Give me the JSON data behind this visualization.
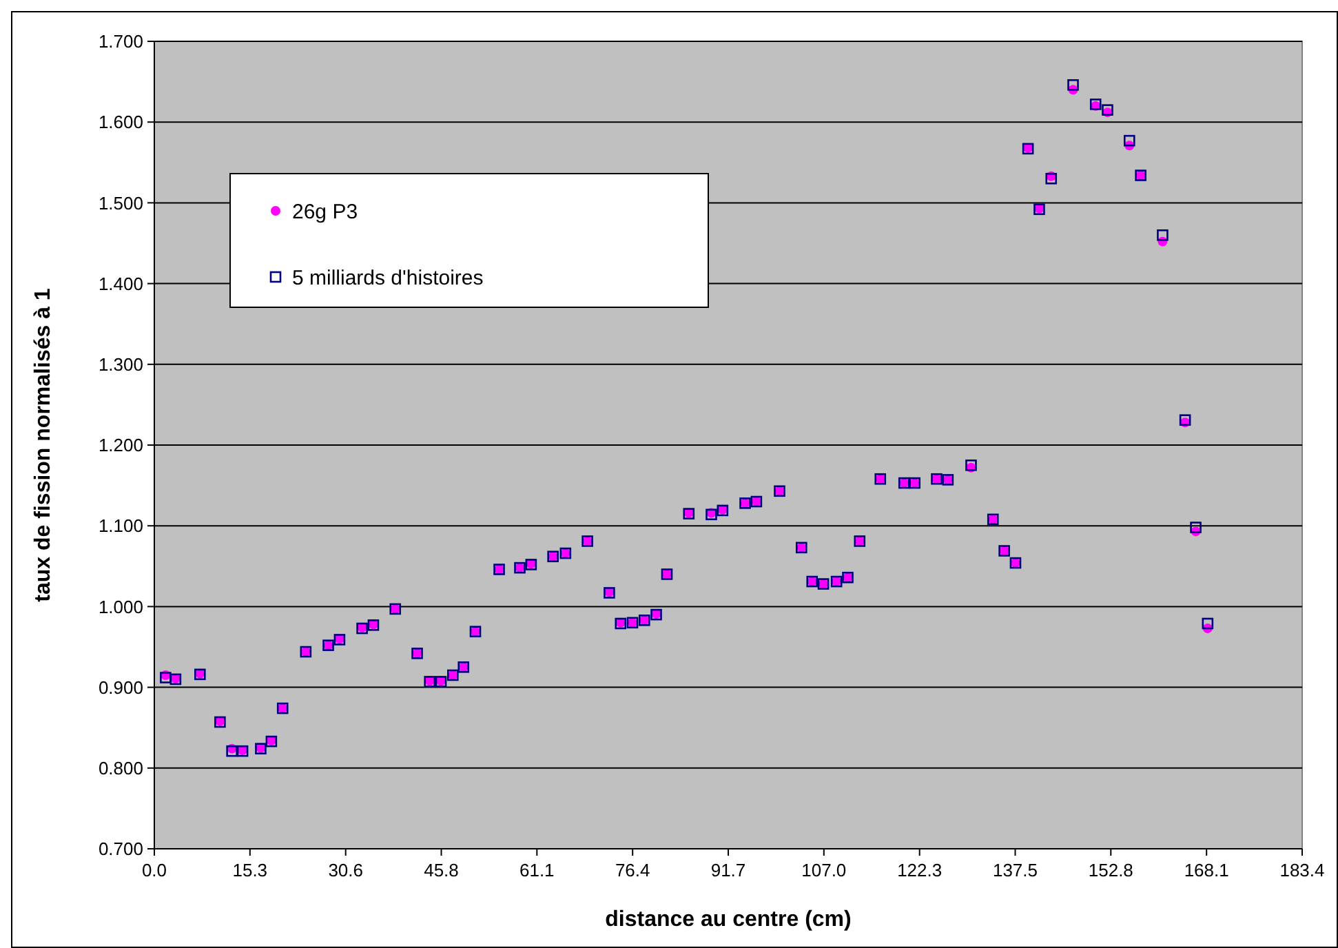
{
  "chart_data": {
    "type": "scatter",
    "xlabel": "distance au centre (cm)",
    "ylabel": "taux de fission normalisés à 1",
    "xlim": [
      0,
      183.4
    ],
    "ylim": [
      0.7,
      1.7
    ],
    "xticks": [
      {
        "value": 0,
        "label": "0.0"
      },
      {
        "value": 15.28,
        "label": "15.3"
      },
      {
        "value": 30.57,
        "label": "30.6"
      },
      {
        "value": 45.85,
        "label": "45.8"
      },
      {
        "value": 61.13,
        "label": "61.1"
      },
      {
        "value": 76.42,
        "label": "76.4"
      },
      {
        "value": 91.7,
        "label": "91.7"
      },
      {
        "value": 106.98,
        "label": "107.0"
      },
      {
        "value": 122.27,
        "label": "122.3"
      },
      {
        "value": 137.55,
        "label": "137.5"
      },
      {
        "value": 152.83,
        "label": "152.8"
      },
      {
        "value": 168.12,
        "label": "168.1"
      },
      {
        "value": 183.4,
        "label": "183.4"
      }
    ],
    "yticks": [
      {
        "value": 0.7,
        "label": "0.700"
      },
      {
        "value": 0.8,
        "label": "0.800"
      },
      {
        "value": 0.9,
        "label": "0.900"
      },
      {
        "value": 1.0,
        "label": "1.000"
      },
      {
        "value": 1.1,
        "label": "1.100"
      },
      {
        "value": 1.2,
        "label": "1.200"
      },
      {
        "value": 1.3,
        "label": "1.300"
      },
      {
        "value": 1.4,
        "label": "1.400"
      },
      {
        "value": 1.5,
        "label": "1.500"
      },
      {
        "value": 1.6,
        "label": "1.600"
      },
      {
        "value": 1.7,
        "label": "1.700"
      }
    ],
    "grid": "y",
    "legend": "top left",
    "x": [
      1.8,
      3.4,
      7.3,
      10.5,
      12.4,
      14.1,
      17.0,
      18.7,
      20.5,
      24.2,
      27.8,
      29.6,
      33.2,
      35.0,
      38.5,
      42.0,
      44.0,
      45.8,
      47.7,
      49.4,
      51.3,
      55.1,
      58.4,
      60.2,
      63.7,
      65.7,
      69.2,
      72.7,
      74.5,
      76.4,
      78.3,
      80.2,
      81.9,
      85.4,
      89.0,
      90.8,
      94.4,
      96.2,
      99.9,
      103.4,
      105.1,
      106.9,
      109.0,
      110.8,
      112.7,
      116.0,
      119.8,
      121.5,
      125.0,
      126.8,
      130.5,
      134.0,
      135.8,
      137.6,
      139.6,
      141.4,
      143.3,
      146.8,
      150.4,
      152.3,
      155.8,
      157.6,
      161.1,
      164.7,
      166.4,
      168.3
    ],
    "series": [
      {
        "name": "26g P3",
        "color": "#ff00ff",
        "marker": "circle",
        "values": [
          0.915,
          0.911,
          0.917,
          0.858,
          0.824,
          0.822,
          0.825,
          0.834,
          0.874,
          0.944,
          0.952,
          0.96,
          0.974,
          0.978,
          0.997,
          0.942,
          0.908,
          0.908,
          0.915,
          0.925,
          0.969,
          1.046,
          1.048,
          1.053,
          1.062,
          1.066,
          1.081,
          1.018,
          0.98,
          0.98,
          0.983,
          0.991,
          1.04,
          1.116,
          1.116,
          1.12,
          1.128,
          1.13,
          1.143,
          1.073,
          1.031,
          1.028,
          1.031,
          1.036,
          1.081,
          1.158,
          1.153,
          1.153,
          1.158,
          1.157,
          1.172,
          1.108,
          1.069,
          1.054,
          1.568,
          1.493,
          1.533,
          1.64,
          1.62,
          1.612,
          1.571,
          1.534,
          1.452,
          1.228,
          1.093,
          0.973
        ]
      },
      {
        "name": "5 milliards d'histoires",
        "color": "#000080",
        "marker": "square",
        "values": [
          0.912,
          0.91,
          0.916,
          0.857,
          0.821,
          0.821,
          0.824,
          0.833,
          0.874,
          0.944,
          0.952,
          0.959,
          0.973,
          0.977,
          0.997,
          0.942,
          0.907,
          0.907,
          0.915,
          0.925,
          0.969,
          1.046,
          1.048,
          1.052,
          1.062,
          1.066,
          1.081,
          1.017,
          0.979,
          0.98,
          0.983,
          0.99,
          1.04,
          1.115,
          1.114,
          1.119,
          1.128,
          1.13,
          1.143,
          1.073,
          1.031,
          1.028,
          1.031,
          1.036,
          1.081,
          1.158,
          1.153,
          1.153,
          1.158,
          1.157,
          1.175,
          1.108,
          1.069,
          1.054,
          1.567,
          1.492,
          1.53,
          1.646,
          1.622,
          1.615,
          1.577,
          1.534,
          1.46,
          1.231,
          1.098,
          0.979
        ]
      }
    ]
  }
}
